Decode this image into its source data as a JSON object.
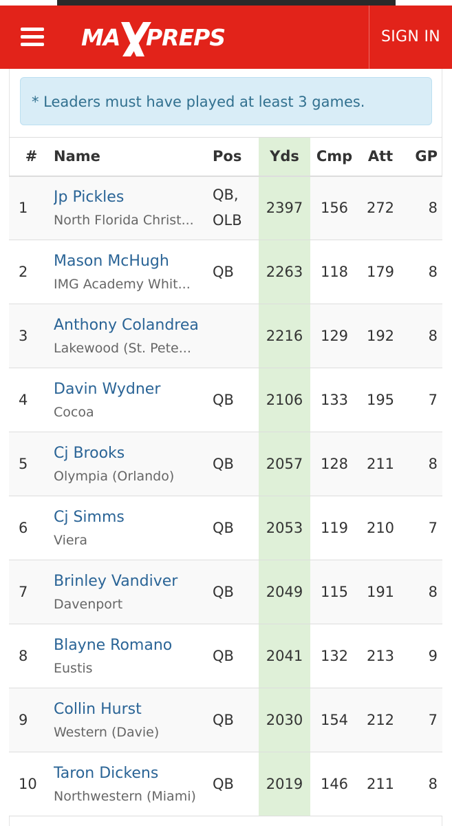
{
  "header": {
    "logo": {
      "part1": "MA",
      "x_mark": "X",
      "part2": "PREPS",
      "icon": "maxpreps-logo"
    },
    "menu_icon": "hamburger-menu-icon",
    "sign_in_label": "SIGN IN",
    "brand_color": "#e2231a"
  },
  "notice": {
    "text": "* Leaders must have played at least 3 games."
  },
  "table": {
    "headers": {
      "rank": "#",
      "name": "Name",
      "pos": "Pos",
      "yds": "Yds",
      "cmp": "Cmp",
      "att": "Att",
      "gp": "GP"
    },
    "rows": [
      {
        "rank": "1",
        "name": "Jp Pickles",
        "school": "North Florida Christ...",
        "pos": "QB, OLB",
        "yds": "2397",
        "cmp": "156",
        "att": "272",
        "gp": "8"
      },
      {
        "rank": "2",
        "name": "Mason McHugh",
        "school": "IMG Academy Whit...",
        "pos": "QB",
        "yds": "2263",
        "cmp": "118",
        "att": "179",
        "gp": "8"
      },
      {
        "rank": "3",
        "name": "Anthony Colandrea",
        "school": "Lakewood (St. Pete...",
        "pos": "",
        "yds": "2216",
        "cmp": "129",
        "att": "192",
        "gp": "8"
      },
      {
        "rank": "4",
        "name": "Davin Wydner",
        "school": "Cocoa",
        "pos": "QB",
        "yds": "2106",
        "cmp": "133",
        "att": "195",
        "gp": "7"
      },
      {
        "rank": "5",
        "name": "Cj Brooks",
        "school": "Olympia (Orlando)",
        "pos": "QB",
        "yds": "2057",
        "cmp": "128",
        "att": "211",
        "gp": "8"
      },
      {
        "rank": "6",
        "name": "Cj Simms",
        "school": "Viera",
        "pos": "QB",
        "yds": "2053",
        "cmp": "119",
        "att": "210",
        "gp": "7"
      },
      {
        "rank": "7",
        "name": "Brinley Vandiver",
        "school": "Davenport",
        "pos": "QB",
        "yds": "2049",
        "cmp": "115",
        "att": "191",
        "gp": "8"
      },
      {
        "rank": "8",
        "name": "Blayne Romano",
        "school": "Eustis",
        "pos": "QB",
        "yds": "2041",
        "cmp": "132",
        "att": "213",
        "gp": "9"
      },
      {
        "rank": "9",
        "name": "Collin Hurst",
        "school": "Western (Davie)",
        "pos": "QB",
        "yds": "2030",
        "cmp": "154",
        "att": "212",
        "gp": "7"
      },
      {
        "rank": "10",
        "name": "Taron Dickens",
        "school": "Northwestern (Miami)",
        "pos": "QB",
        "yds": "2019",
        "cmp": "146",
        "att": "211",
        "gp": "8"
      }
    ]
  }
}
